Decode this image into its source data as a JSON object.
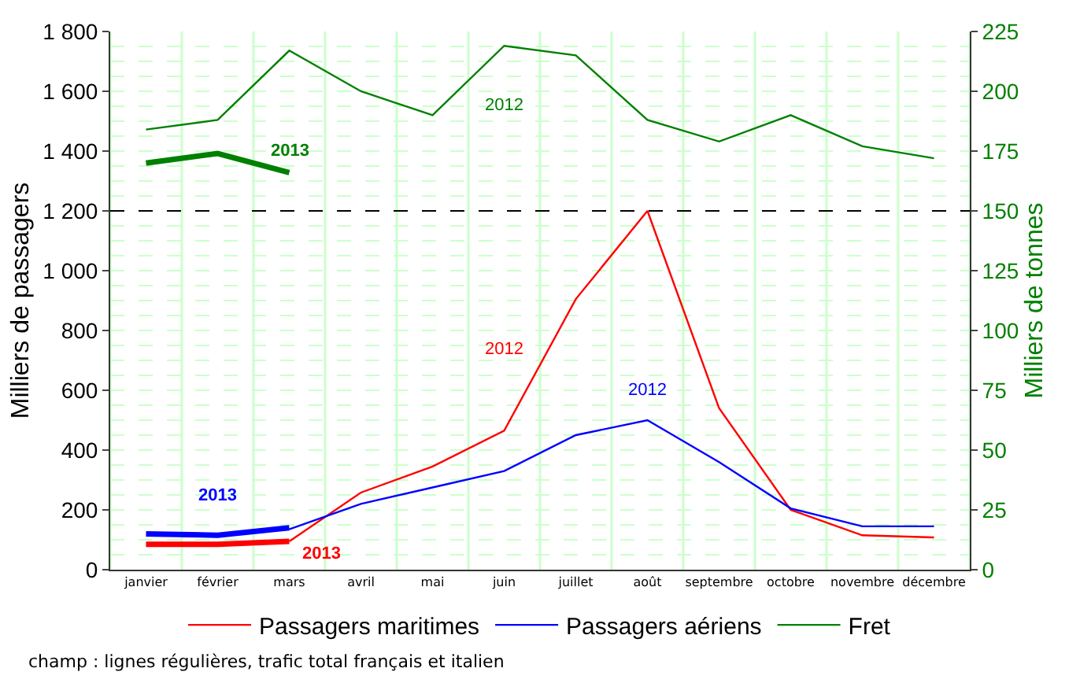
{
  "chart_data": {
    "type": "line",
    "ylabel": "Milliers de passagers",
    "y2label": "Milliers de tonnes",
    "categories": [
      "janvier",
      "février",
      "mars",
      "avril",
      "mai",
      "juin",
      "juillet",
      "août",
      "septembre",
      "octobre",
      "novembre",
      "décembre"
    ],
    "series": [
      {
        "name": "Passagers maritimes",
        "color": "#ff0000",
        "values": [
          null,
          null,
          95,
          258,
          345,
          465,
          905,
          1200,
          540,
          200,
          115,
          108
        ]
      },
      {
        "color": "#ff0000",
        "values": [
          85,
          85,
          95,
          null,
          null,
          null,
          null,
          null,
          null,
          null,
          null,
          null
        ]
      },
      {
        "name": "Passagers aériens",
        "color": "#0000ff",
        "values": [
          null,
          null,
          135,
          220,
          275,
          330,
          450,
          500,
          360,
          205,
          145,
          145
        ]
      },
      {
        "color": "#0000ff",
        "values": [
          120,
          115,
          140,
          null,
          null,
          null,
          null,
          null,
          null,
          null,
          null,
          null
        ]
      },
      {
        "name": "Fret",
        "color": "#008000",
        "axis": "y2",
        "values": [
          184,
          188,
          217,
          200,
          190,
          219,
          215,
          188,
          179,
          190,
          177,
          172
        ]
      },
      {
        "color": "#008000",
        "axis": "y2",
        "values": [
          170,
          174,
          166,
          null,
          null,
          null,
          null,
          null,
          null,
          null,
          null,
          null
        ]
      }
    ],
    "ylim": [
      0,
      1800
    ],
    "yticks": [
      0,
      {
        "value": 200,
        "label": "200"
      },
      {
        "value": 400,
        "label": "400"
      },
      {
        "value": 600,
        "label": "600"
      },
      {
        "value": 800,
        "label": "800"
      },
      {
        "value": 1000,
        "label": "1 000"
      },
      {
        "value": 1200,
        "label": "1 200"
      },
      {
        "value": 1400,
        "label": "1 400"
      },
      {
        "value": 1600,
        "label": "1 600"
      },
      {
        "value": 1800,
        "label": "1 800"
      }
    ],
    "y2lim": [
      0,
      225
    ],
    "y2ticks": [
      0,
      25,
      50,
      75,
      100,
      125,
      150,
      175,
      200,
      225
    ],
    "ref_lines": [
      {
        "axis": "y",
        "value": 1200,
        "color": "#000000",
        "line_style": "dashed"
      }
    ],
    "annotations": [
      "2013",
      "2012",
      "2012",
      "2013",
      "2013",
      "2012",
      "champ : lignes régulières, trafic total français et italien"
    ],
    "grid": true,
    "legend": "bottom",
    "marker": "none",
    "line_style": "solid"
  }
}
